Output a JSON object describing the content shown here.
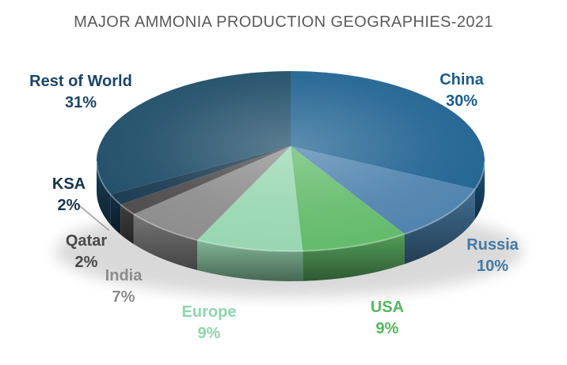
{
  "chart_data": {
    "type": "pie",
    "style": "3d",
    "title": "MAJOR AMMONIA PRODUCTION GEOGRAPHIES-2021",
    "title_color": "#5A5A5A",
    "background": "#FFFFFF",
    "unit": "%",
    "direction": "clockwise",
    "start_angle_deg": 0,
    "total": 100,
    "legend": "none",
    "labels_position": "outside",
    "slices": [
      {
        "label": "China",
        "value": 30,
        "display": "30%",
        "color": "#1E6190",
        "label_color": "#1A5C8E",
        "label_x": 583,
        "label_y": 88
      },
      {
        "label": "Russia",
        "value": 10,
        "display": "10%",
        "color": "#4C81AD",
        "label_color": "#4379A4",
        "label_x": 622,
        "label_y": 297
      },
      {
        "label": "USA",
        "value": 9,
        "display": "9%",
        "color": "#61BA69",
        "label_color": "#55B661",
        "label_x": 489,
        "label_y": 376
      },
      {
        "label": "Europe",
        "value": 9,
        "display": "9%",
        "color": "#96D6B0",
        "label_color": "#90D5AC",
        "label_x": 264,
        "label_y": 382
      },
      {
        "label": "India",
        "value": 7,
        "display": "7%",
        "color": "#8B8B8B",
        "label_color": "#8C8C8C",
        "label_x": 156,
        "label_y": 336
      },
      {
        "label": "Qatar",
        "value": 2,
        "display": "2%",
        "color": "#4B4949",
        "label_color": "#4A4848",
        "label_x": 109,
        "label_y": 292
      },
      {
        "label": "KSA",
        "value": 2,
        "display": "2%",
        "color": "#17384F",
        "label_color": "#15344C",
        "label_x": 87,
        "label_y": 220
      },
      {
        "label": "Rest of World",
        "value": 31,
        "display": "31%",
        "color": "#1D4B66",
        "label_color": "#1C4466",
        "label_x": 102,
        "label_y": 90
      }
    ],
    "leader_line": {
      "from_slice": "KSA"
    }
  }
}
